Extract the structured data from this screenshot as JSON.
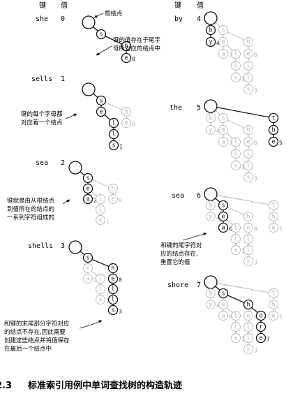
{
  "headers": {
    "key": "键",
    "value": "值"
  },
  "steps": [
    {
      "key": "she",
      "value": "0"
    },
    {
      "key": "sells",
      "value": "1"
    },
    {
      "key": "sea",
      "value": "2"
    },
    {
      "key": "shells",
      "value": "3"
    },
    {
      "key": "by",
      "value": "4"
    },
    {
      "key": "the",
      "value": "5"
    },
    {
      "key": "sea",
      "value": "6"
    },
    {
      "key": "shore",
      "value": "7"
    }
  ],
  "annotations": {
    "root": "根结点",
    "tail": [
      "键的值存在于尾字",
      "母所对应的结点中"
    ],
    "each_char": [
      "键的每个字母都",
      "对应着一个结点"
    ],
    "path": [
      "键就是由从根结点",
      "到值所在的结点的",
      "一系列字符组成的"
    ],
    "reset": [
      "和键的尾字符对",
      "应的结点存在,",
      "重置它的值"
    ],
    "create": [
      "和键的末尾部分字符对应",
      "的结点不存在,因此需要",
      "创建这些结点并将值保存",
      "在最后一个结点中"
    ]
  },
  "caption": {
    "number": "2.3",
    "title": "标准索引用例中单词查找树的构造轨迹"
  },
  "colors": {
    "active": "#111111",
    "inactive": "#b4b4b4"
  }
}
